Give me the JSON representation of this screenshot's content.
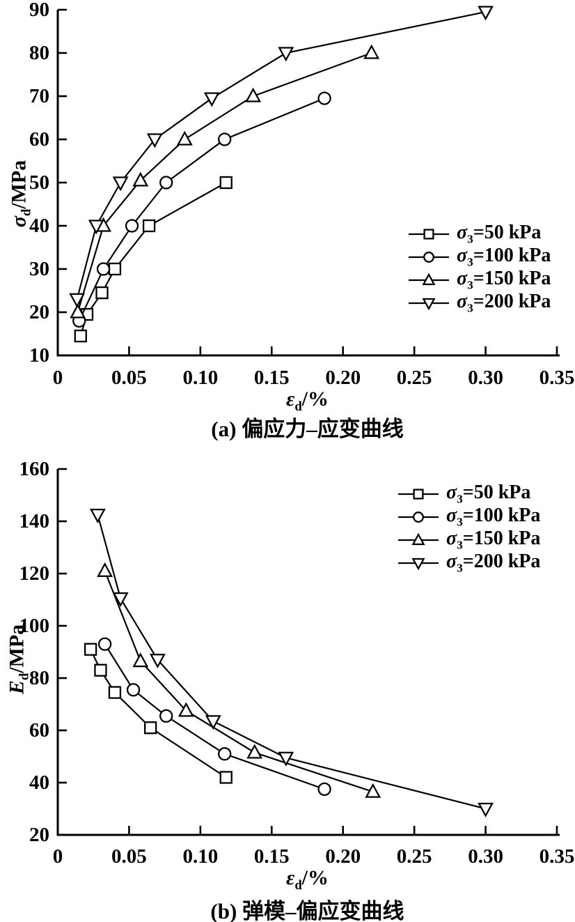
{
  "figure": {
    "background": "#ffffff",
    "ink_color": "#000000"
  },
  "chart_data": [
    {
      "id": "a",
      "type": "line",
      "title": "(a) 偏应力–应变曲线",
      "xlabel": "εd/%",
      "ylabel": "σd/MPa",
      "xlabel_parts": {
        "main": "ε",
        "sub": "d",
        "rest": "/%"
      },
      "ylabel_parts": {
        "main": "σ",
        "sub": "d",
        "rest": "/MPa"
      },
      "xlim": [
        0,
        0.35
      ],
      "ylim": [
        10,
        90
      ],
      "x_ticks": [
        0,
        0.05,
        0.1,
        0.15,
        0.2,
        0.25,
        0.3,
        0.35
      ],
      "x_tick_labels": [
        "0",
        "0.05",
        "0.10",
        "0.15",
        "0.20",
        "0.25",
        "0.30",
        "0.35"
      ],
      "y_ticks": [
        10,
        20,
        30,
        40,
        50,
        60,
        70,
        80,
        90
      ],
      "y_tick_labels": [
        "10",
        "20",
        "30",
        "40",
        "50",
        "60",
        "70",
        "80",
        "90"
      ],
      "grid": false,
      "legend_position": "right-center",
      "series": [
        {
          "name": "σ3=50 kPa",
          "legend": {
            "main": "σ",
            "sub": "3",
            "rest": "=50 kPa"
          },
          "marker": "square",
          "x": [
            0.016,
            0.0205,
            0.031,
            0.04,
            0.064,
            0.118
          ],
          "y": [
            14.5,
            19.5,
            24.5,
            30,
            40,
            50
          ]
        },
        {
          "name": "σ3=100 kPa",
          "legend": {
            "main": "σ",
            "sub": "3",
            "rest": "=100 kPa"
          },
          "marker": "circle",
          "x": [
            0.015,
            0.032,
            0.052,
            0.076,
            0.117,
            0.187
          ],
          "y": [
            18,
            30,
            40,
            50,
            60,
            69.5
          ]
        },
        {
          "name": "σ3=150 kPa",
          "legend": {
            "main": "σ",
            "sub": "3",
            "rest": "=150 kPa"
          },
          "marker": "triangle-up",
          "x": [
            0.014,
            0.032,
            0.058,
            0.089,
            0.137,
            0.22
          ],
          "y": [
            20,
            40,
            50.5,
            60,
            70,
            80
          ]
        },
        {
          "name": "σ3=200 kPa",
          "legend": {
            "main": "σ",
            "sub": "3",
            "rest": "=200 kPa"
          },
          "marker": "triangle-down",
          "x": [
            0.0135,
            0.027,
            0.044,
            0.068,
            0.108,
            0.16,
            0.3
          ],
          "y": [
            23,
            40,
            50,
            60,
            69.5,
            80,
            89.5
          ]
        }
      ]
    },
    {
      "id": "b",
      "type": "line",
      "title": "(b) 弹模–偏应变曲线",
      "xlabel": "εd/%",
      "ylabel": "Ed/MPa",
      "xlabel_parts": {
        "main": "ε",
        "sub": "d",
        "rest": "/%"
      },
      "ylabel_parts": {
        "main": "E",
        "sub": "d",
        "rest": "/MPa"
      },
      "xlim": [
        0,
        0.35
      ],
      "ylim": [
        20,
        160
      ],
      "x_ticks": [
        0,
        0.05,
        0.1,
        0.15,
        0.2,
        0.25,
        0.3,
        0.35
      ],
      "x_tick_labels": [
        "0",
        "0.05",
        "0.10",
        "0.15",
        "0.20",
        "0.25",
        "0.30",
        "0.35"
      ],
      "y_ticks": [
        20,
        40,
        60,
        80,
        100,
        120,
        140,
        160
      ],
      "y_tick_labels": [
        "20",
        "40",
        "60",
        "80",
        "100",
        "120",
        "140",
        "160"
      ],
      "grid": false,
      "legend_position": "top-right",
      "series": [
        {
          "name": "σ3=50 kPa",
          "legend": {
            "main": "σ",
            "sub": "3",
            "rest": "=50 kPa"
          },
          "marker": "square",
          "x": [
            0.023,
            0.03,
            0.04,
            0.065,
            0.118
          ],
          "y": [
            91,
            83,
            74.5,
            61,
            42
          ]
        },
        {
          "name": "σ3=100 kPa",
          "legend": {
            "main": "σ",
            "sub": "3",
            "rest": "=100 kPa"
          },
          "marker": "circle",
          "x": [
            0.033,
            0.053,
            0.076,
            0.117,
            0.187
          ],
          "y": [
            93,
            75.5,
            65.5,
            51,
            37.5
          ]
        },
        {
          "name": "σ3=150 kPa",
          "legend": {
            "main": "σ",
            "sub": "3",
            "rest": "=150 kPa"
          },
          "marker": "triangle-up",
          "x": [
            0.033,
            0.058,
            0.09,
            0.138,
            0.221
          ],
          "y": [
            121,
            86.5,
            67.5,
            51.5,
            36.5
          ]
        },
        {
          "name": "σ3=200 kPa",
          "legend": {
            "main": "σ",
            "sub": "3",
            "rest": "=200 kPa"
          },
          "marker": "triangle-down",
          "x": [
            0.028,
            0.044,
            0.07,
            0.109,
            0.16,
            0.3
          ],
          "y": [
            142.5,
            110.5,
            87,
            63.5,
            49.5,
            30
          ]
        }
      ]
    }
  ]
}
